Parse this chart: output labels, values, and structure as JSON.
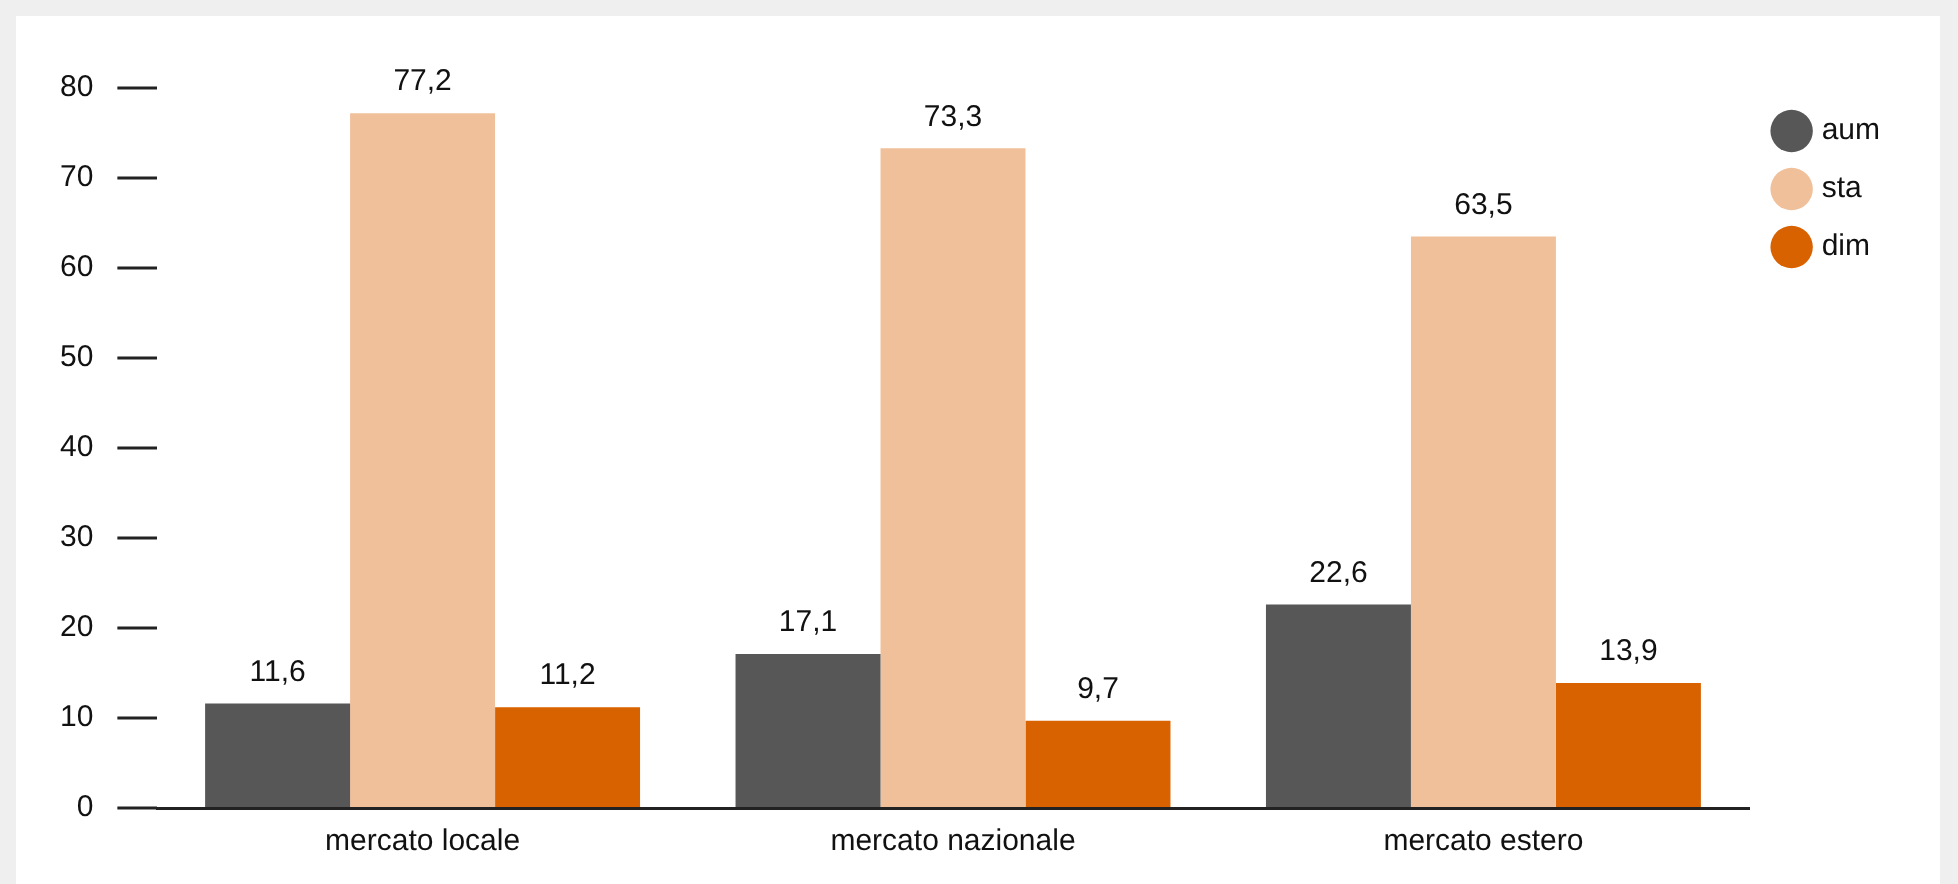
{
  "chart_data": {
    "type": "bar",
    "categories": [
      "mercato locale",
      "mercato nazionale",
      "mercato estero"
    ],
    "series": [
      {
        "name": "aum",
        "color": "#575757",
        "values": [
          11.6,
          17.1,
          22.6
        ],
        "value_labels": [
          "11,6",
          "17,1",
          "22,6"
        ]
      },
      {
        "name": "sta",
        "color": "#f0c09a",
        "values": [
          77.2,
          73.3,
          63.5
        ],
        "value_labels": [
          "77,2",
          "73,3",
          "63,5"
        ]
      },
      {
        "name": "dim",
        "color": "#d96200",
        "values": [
          11.2,
          9.7,
          13.9
        ],
        "value_labels": [
          "11,2",
          "9,7",
          "13,9"
        ]
      }
    ],
    "ylim": [
      0,
      80
    ],
    "yticks": [
      0,
      10,
      20,
      30,
      40,
      50,
      60,
      70,
      80
    ],
    "grid": false,
    "legend": "top right"
  }
}
